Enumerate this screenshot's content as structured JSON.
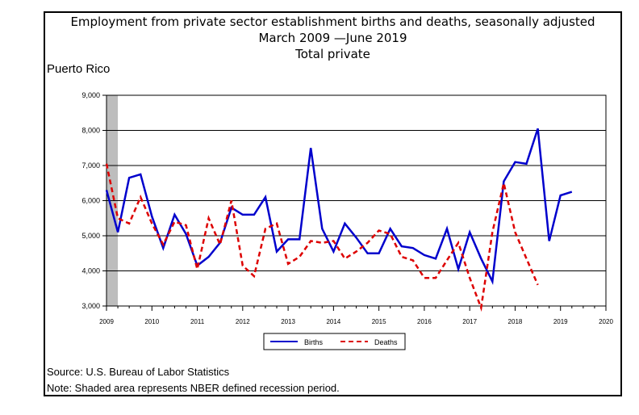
{
  "chart_data": {
    "type": "line",
    "title": "Employment from private sector establishment births and deaths, seasonally adjusted",
    "subtitle": "March 2009 —June 2019",
    "sub_subtitle": "Total private",
    "region_label": "Puerto Rico",
    "xlim": [
      2009,
      2020
    ],
    "ylim": [
      3000,
      9000
    ],
    "x_ticks": [
      2009,
      2010,
      2011,
      2012,
      2013,
      2014,
      2015,
      2016,
      2017,
      2018,
      2019,
      2020
    ],
    "y_ticks": [
      3000,
      4000,
      5000,
      6000,
      7000,
      8000,
      9000
    ],
    "y_tick_labels": [
      "3,000",
      "4,000",
      "5,000",
      "6,000",
      "7,000",
      "8,000",
      "9,000"
    ],
    "grid": true,
    "legend_position": "bottom-center",
    "recession": {
      "start": 2009.0,
      "end": 2009.25,
      "color": "#bdbdbd"
    },
    "x": [
      2009.0,
      2009.25,
      2009.5,
      2009.75,
      2010.0,
      2010.25,
      2010.5,
      2010.75,
      2011.0,
      2011.25,
      2011.5,
      2011.75,
      2012.0,
      2012.25,
      2012.5,
      2012.75,
      2013.0,
      2013.25,
      2013.5,
      2013.75,
      2014.0,
      2014.25,
      2014.5,
      2014.75,
      2015.0,
      2015.25,
      2015.5,
      2015.75,
      2016.0,
      2016.25,
      2016.5,
      2016.75,
      2017.0,
      2017.25,
      2017.5,
      2017.75,
      2018.0,
      2018.25,
      2018.5,
      2018.75,
      2019.0,
      2019.25
    ],
    "series": [
      {
        "name": "Births",
        "color": "#0000cc",
        "dash": "none",
        "values": [
          6300,
          5100,
          6650,
          6750,
          5550,
          4650,
          5600,
          5050,
          4150,
          4400,
          4800,
          5800,
          5600,
          5600,
          6100,
          4550,
          4900,
          4900,
          7500,
          5200,
          4550,
          5350,
          4950,
          4500,
          4500,
          5200,
          4700,
          4650,
          4450,
          4350,
          5200,
          4050,
          5100,
          4350,
          3700,
          6550,
          7100,
          7050,
          8050,
          4850,
          6150,
          6250
        ]
      },
      {
        "name": "Deaths",
        "color": "#dd0000",
        "dash": "6 4",
        "values": [
          7050,
          5500,
          5350,
          6100,
          5350,
          4750,
          5400,
          5300,
          4050,
          5500,
          4750,
          6000,
          4150,
          3850,
          5200,
          5350,
          4200,
          4400,
          4850,
          4800,
          4850,
          4350,
          4550,
          4800,
          5150,
          5050,
          4400,
          4300,
          3800,
          3800,
          4300,
          4800,
          3800,
          2950,
          5100,
          6500,
          5100,
          4350,
          3600,
          null,
          null,
          null
        ]
      }
    ]
  },
  "footnotes": {
    "source": "Source: U.S. Bureau of Labor Statistics",
    "note": "Note: Shaded area represents NBER defined recession period."
  }
}
